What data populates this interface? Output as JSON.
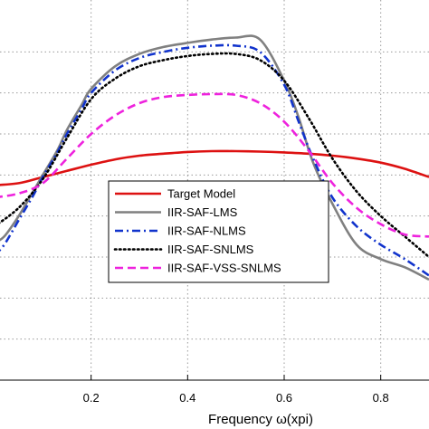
{
  "chart_data": {
    "type": "line",
    "title": "",
    "xlabel": "Frequency ω(xpi)",
    "ylabel": "",
    "xlim": [
      0,
      0.9
    ],
    "ylim": [
      0,
      9
    ],
    "grid": true,
    "legend_placement": "center",
    "xticks": [
      0.2,
      0.4,
      0.6,
      0.8
    ],
    "xtick_labels": [
      "0.2",
      "0.4",
      "0.6",
      "0.8"
    ],
    "series": [
      {
        "name": "Target Model",
        "color": "#dd1111",
        "style": "solid",
        "x": [
          0,
          0.05,
          0.1,
          0.15,
          0.2,
          0.25,
          0.3,
          0.35,
          0.4,
          0.45,
          0.5,
          0.55,
          0.6,
          0.65,
          0.7,
          0.75,
          0.8,
          0.85,
          0.9
        ],
        "y": [
          4.75,
          4.8,
          4.95,
          5.1,
          5.25,
          5.38,
          5.47,
          5.52,
          5.56,
          5.58,
          5.58,
          5.57,
          5.55,
          5.52,
          5.47,
          5.4,
          5.3,
          5.15,
          4.95
        ]
      },
      {
        "name": "IIR-SAF-LMS",
        "color": "#808080",
        "style": "solid",
        "x": [
          0,
          0.02,
          0.05,
          0.08,
          0.1,
          0.13,
          0.15,
          0.18,
          0.2,
          0.25,
          0.3,
          0.35,
          0.4,
          0.45,
          0.5,
          0.55,
          0.6,
          0.63,
          0.66,
          0.7,
          0.75,
          0.8,
          0.85,
          0.9
        ],
        "y": [
          3.35,
          3.5,
          4.0,
          4.6,
          5.0,
          5.6,
          6.1,
          6.7,
          7.1,
          7.65,
          7.95,
          8.12,
          8.22,
          8.3,
          8.35,
          8.3,
          7.3,
          6.4,
          5.3,
          4.3,
          3.3,
          2.95,
          2.75,
          2.45
        ]
      },
      {
        "name": "IIR-SAF-NLMS",
        "color": "#1133cc",
        "style": "dashdot",
        "x": [
          0,
          0.02,
          0.05,
          0.08,
          0.1,
          0.13,
          0.15,
          0.18,
          0.2,
          0.25,
          0.3,
          0.35,
          0.4,
          0.45,
          0.5,
          0.55,
          0.6,
          0.63,
          0.66,
          0.7,
          0.75,
          0.8,
          0.85,
          0.9
        ],
        "y": [
          3.05,
          3.3,
          3.9,
          4.5,
          4.95,
          5.55,
          6.0,
          6.6,
          7.0,
          7.55,
          7.85,
          8.0,
          8.1,
          8.15,
          8.15,
          8.0,
          7.2,
          6.3,
          5.4,
          4.45,
          3.75,
          3.3,
          2.95,
          2.55
        ]
      },
      {
        "name": "IIR-SAF-SNLMS",
        "color": "#000000",
        "style": "dotted",
        "x": [
          0,
          0.05,
          0.1,
          0.15,
          0.2,
          0.25,
          0.3,
          0.35,
          0.4,
          0.45,
          0.5,
          0.55,
          0.6,
          0.65,
          0.7,
          0.75,
          0.8,
          0.85,
          0.9
        ],
        "y": [
          3.75,
          4.2,
          4.9,
          5.9,
          6.85,
          7.35,
          7.65,
          7.8,
          7.9,
          7.95,
          7.95,
          7.8,
          7.3,
          6.4,
          5.4,
          4.6,
          4.0,
          3.5,
          3.0
        ]
      },
      {
        "name": "IIR-SAF-VSS-SNLMS",
        "color": "#ee22dd",
        "style": "dashed",
        "x": [
          0,
          0.05,
          0.1,
          0.15,
          0.2,
          0.25,
          0.3,
          0.35,
          0.4,
          0.45,
          0.5,
          0.55,
          0.6,
          0.65,
          0.7,
          0.75,
          0.8,
          0.85,
          0.9
        ],
        "y": [
          4.45,
          4.55,
          4.8,
          5.4,
          6.0,
          6.45,
          6.75,
          6.9,
          6.95,
          6.97,
          6.95,
          6.75,
          6.3,
          5.6,
          4.8,
          4.2,
          3.8,
          3.55,
          3.5
        ]
      }
    ]
  }
}
